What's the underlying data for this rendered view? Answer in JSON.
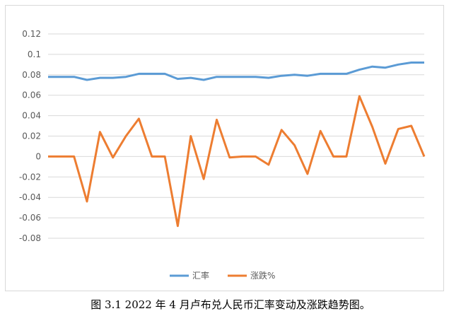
{
  "caption": "图 3.1 2022 年 4 月卢布兑人民币汇率变动及涨跌趋势图。",
  "chart_data": {
    "type": "line",
    "title": "",
    "xlabel": "",
    "ylabel": "",
    "ylim": [
      -0.08,
      0.12
    ],
    "yticks": [
      "0.12",
      "0.1",
      "0.08",
      "0.06",
      "0.04",
      "0.02",
      "0",
      "-0.02",
      "-0.04",
      "-0.06",
      "-0.08"
    ],
    "grid": "horizontal",
    "legend_position": "bottom",
    "colors": {
      "exchange_rate": "#5b9bd5",
      "change_pct": "#ed7d31",
      "grid": "#d9d9d9"
    },
    "x": [
      1,
      2,
      3,
      4,
      5,
      6,
      7,
      8,
      9,
      10,
      11,
      12,
      13,
      14,
      15,
      16,
      17,
      18,
      19,
      20,
      21,
      22,
      23,
      24,
      25,
      26,
      27,
      28,
      29,
      30
    ],
    "series": [
      {
        "name": "汇率",
        "values": [
          0.078,
          0.078,
          0.078,
          0.075,
          0.077,
          0.077,
          0.078,
          0.081,
          0.081,
          0.081,
          0.076,
          0.077,
          0.075,
          0.078,
          0.078,
          0.078,
          0.078,
          0.077,
          0.079,
          0.08,
          0.079,
          0.081,
          0.081,
          0.081,
          0.085,
          0.088,
          0.087,
          0.09,
          0.092,
          0.092
        ]
      },
      {
        "name": "涨跌%",
        "values": [
          0,
          0,
          0,
          -0.044,
          0.024,
          -0.001,
          0.02,
          0.037,
          0,
          0,
          -0.068,
          0.02,
          -0.022,
          0.036,
          -0.001,
          0,
          0,
          -0.008,
          0.026,
          0.011,
          -0.017,
          0.025,
          0,
          0,
          0.059,
          0.029,
          -0.007,
          0.027,
          0.03,
          0
        ]
      }
    ]
  }
}
